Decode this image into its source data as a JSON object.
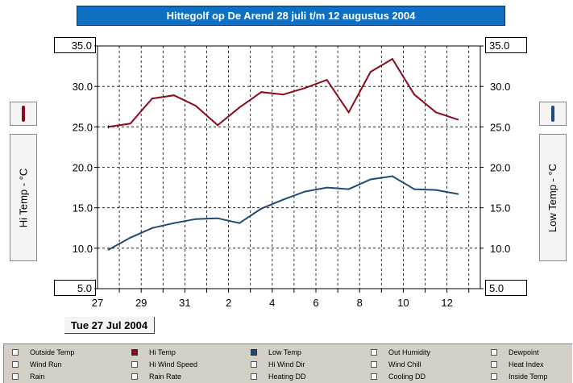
{
  "title": "Hittegolf op De Arend 28 juli t/m 12 augustus 2004",
  "left_axis": {
    "label": "Hi Temp - °C",
    "top_value": "35.0",
    "bottom_value": "5.0"
  },
  "right_axis": {
    "label": "Low Temp - °C",
    "top_value": "35.0",
    "bottom_value": "5.0"
  },
  "cursor_date": "Tue 27 Jul 2004",
  "colors": {
    "hi_temp": "#8b0a1e",
    "low_temp": "#1e4a73",
    "title_bg": "#0f6fc2"
  },
  "chart_data": {
    "type": "line",
    "x_tick_labels": [
      "27",
      "29",
      "31",
      "2",
      "4",
      "6",
      "8",
      "10",
      "12"
    ],
    "x": [
      "27 Jul",
      "28 Jul",
      "29 Jul",
      "30 Jul",
      "31 Jul",
      "1 Aug",
      "2 Aug",
      "3 Aug",
      "4 Aug",
      "5 Aug",
      "6 Aug",
      "7 Aug",
      "8 Aug",
      "9 Aug",
      "10 Aug",
      "11 Aug",
      "12 Aug"
    ],
    "ylim": [
      5,
      35
    ],
    "y_ticks": [
      "35.0",
      "30.0",
      "25.0",
      "20.0",
      "15.0",
      "10.0",
      "5.0"
    ],
    "grid": true,
    "series": [
      {
        "name": "Hi Temp",
        "color": "#8b0a1e",
        "values": [
          25.0,
          25.4,
          28.5,
          28.9,
          27.6,
          25.2,
          27.4,
          29.3,
          29.0,
          29.8,
          30.8,
          26.8,
          31.8,
          33.4,
          29.0,
          26.8,
          25.9
        ]
      },
      {
        "name": "Low Temp",
        "color": "#1e4a73",
        "values": [
          9.8,
          11.3,
          12.5,
          13.1,
          13.6,
          13.7,
          13.1,
          14.9,
          16.0,
          17.0,
          17.5,
          17.3,
          18.5,
          18.9,
          17.3,
          17.2,
          16.7
        ]
      }
    ]
  },
  "legend": [
    {
      "label": "Outside Temp",
      "checked": false
    },
    {
      "label": "Hi Temp",
      "checked": true,
      "color": "#8b0a1e"
    },
    {
      "label": "Low Temp",
      "checked": true,
      "color": "#1e4a73"
    },
    {
      "label": "Out Humidity",
      "checked": false
    },
    {
      "label": "Dewpoint",
      "checked": false
    },
    {
      "label": "Wind Run",
      "checked": false
    },
    {
      "label": "Hi Wind Speed",
      "checked": false
    },
    {
      "label": "Hi Wind Dir",
      "checked": false
    },
    {
      "label": "Wind Chill",
      "checked": false
    },
    {
      "label": "Heat Index",
      "checked": false
    },
    {
      "label": "Rain",
      "checked": false
    },
    {
      "label": "Rain Rate",
      "checked": false
    },
    {
      "label": "Heating DD",
      "checked": false
    },
    {
      "label": "Cooling DD",
      "checked": false
    },
    {
      "label": "Inside Temp",
      "checked": false
    }
  ]
}
